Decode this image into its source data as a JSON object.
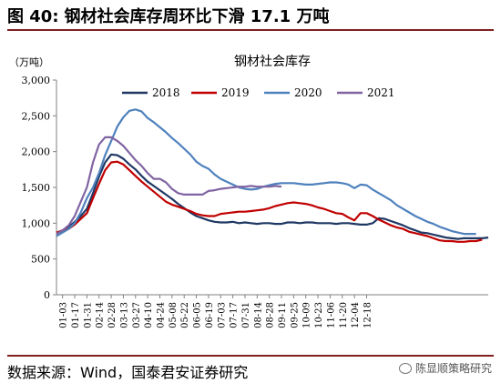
{
  "header": {
    "fig_label": "图 40:",
    "fig_text": "钢材社会库存周环比下滑 17.1 万吨"
  },
  "footer": {
    "source": "数据来源：Wind，国泰君安证券研究",
    "watermark": "陈显顺策略研究",
    "watermark_icon": "wechat-icon"
  },
  "chart_data": {
    "type": "line",
    "title": "钢材社会库存",
    "unit": "（万吨）",
    "xlabel": "",
    "ylabel": "",
    "ylim": [
      0,
      3000
    ],
    "yticks": [
      0,
      500,
      1000,
      1500,
      2000,
      2500,
      3000
    ],
    "ytick_labels": [
      "0",
      "500",
      "1,000",
      "1,500",
      "2,000",
      "2,500",
      "3,000"
    ],
    "grid": false,
    "legend_position": "top-center",
    "x_tick_labels": [
      "01-03",
      "01-17",
      "01-31",
      "02-14",
      "02-28",
      "03-13",
      "03-27",
      "04-10",
      "04-24",
      "05-08",
      "05-22",
      "06-05",
      "06-19",
      "07-03",
      "07-17",
      "07-31",
      "08-14",
      "08-28",
      "09-11",
      "09-25",
      "10-09",
      "10-23",
      "11-06",
      "11-20",
      "12-04",
      "12-18"
    ],
    "series": [
      {
        "name": "2018",
        "color": "#1f3864",
        "values": [
          860,
          890,
          950,
          1020,
          1100,
          1200,
          1420,
          1650,
          1850,
          1960,
          1950,
          1900,
          1820,
          1750,
          1660,
          1580,
          1520,
          1460,
          1400,
          1340,
          1270,
          1210,
          1150,
          1100,
          1070,
          1040,
          1020,
          1010,
          1010,
          1020,
          1000,
          1010,
          1000,
          990,
          1000,
          1000,
          990,
          990,
          1010,
          1010,
          1000,
          1010,
          1010,
          1000,
          1000,
          1000,
          990,
          1000,
          1000,
          990,
          980,
          980,
          1000,
          1070,
          1060,
          1030,
          1000,
          970,
          930,
          900,
          870,
          860,
          840,
          820,
          800,
          790,
          780,
          790,
          790,
          790,
          790,
          800
        ]
      },
      {
        "name": "2019",
        "color": "#c00000",
        "values": [
          870,
          900,
          920,
          980,
          1060,
          1140,
          1350,
          1550,
          1740,
          1850,
          1860,
          1820,
          1740,
          1660,
          1580,
          1510,
          1440,
          1370,
          1300,
          1260,
          1230,
          1200,
          1170,
          1130,
          1110,
          1100,
          1100,
          1130,
          1140,
          1150,
          1160,
          1160,
          1170,
          1180,
          1190,
          1210,
          1240,
          1260,
          1280,
          1290,
          1280,
          1270,
          1250,
          1220,
          1200,
          1170,
          1140,
          1130,
          1080,
          1040,
          1140,
          1140,
          1100,
          1050,
          1010,
          970,
          940,
          920,
          880,
          860,
          840,
          820,
          790,
          760,
          750,
          750,
          740,
          740,
          750,
          750,
          770
        ]
      },
      {
        "name": "2020",
        "color": "#4f81bd",
        "values": [
          820,
          870,
          920,
          1000,
          1150,
          1350,
          1500,
          1700,
          1950,
          2150,
          2350,
          2480,
          2570,
          2590,
          2560,
          2470,
          2410,
          2340,
          2270,
          2190,
          2120,
          2040,
          1960,
          1860,
          1800,
          1760,
          1680,
          1620,
          1580,
          1540,
          1500,
          1480,
          1470,
          1480,
          1510,
          1530,
          1550,
          1560,
          1560,
          1560,
          1550,
          1540,
          1540,
          1550,
          1560,
          1570,
          1570,
          1560,
          1540,
          1490,
          1540,
          1530,
          1470,
          1420,
          1370,
          1320,
          1250,
          1200,
          1150,
          1100,
          1060,
          1020,
          990,
          950,
          920,
          890,
          870,
          850,
          850,
          850
        ]
      },
      {
        "name": "2021",
        "color": "#8064a2",
        "values": [
          850,
          900,
          970,
          1100,
          1300,
          1500,
          1850,
          2100,
          2200,
          2200,
          2150,
          2080,
          1980,
          1880,
          1800,
          1700,
          1620,
          1620,
          1570,
          1480,
          1420,
          1400,
          1400,
          1400,
          1400,
          1450,
          1460,
          1480,
          1490,
          1500,
          1510,
          1510,
          1520,
          1510,
          1510,
          1510,
          1520,
          1510
        ]
      }
    ],
    "x_range": [
      0,
      71
    ]
  }
}
